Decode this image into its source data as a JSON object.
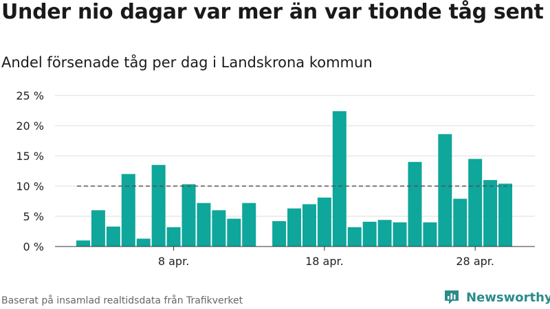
{
  "title": "Under nio dagar var mer än var tionde tåg sent",
  "subtitle": "Andel försenade tåg per dag i Landskrona kommun",
  "source": "Baserat på insamlad realtidsdata från Trafikverket",
  "brand": {
    "name": "Newsworthy",
    "icon": "bar-chart-logo-icon"
  },
  "colors": {
    "bar": "#0fa69b",
    "reference_line": "#555555",
    "grid": "#dddddd",
    "brand": "#2a8b8b"
  },
  "chart_data": {
    "type": "bar",
    "title": "Andel försenade tåg per dag i Landskrona kommun",
    "xlabel": "",
    "ylabel": "",
    "x_start": "2 apr.",
    "x_end": "30 apr.",
    "x": [
      "2 apr.",
      "3 apr.",
      "4 apr.",
      "5 apr.",
      "6 apr.",
      "7 apr.",
      "8 apr.",
      "9 apr.",
      "10 apr.",
      "11 apr.",
      "12 apr.",
      "13 apr.",
      "14 apr.",
      "15 apr.",
      "16 apr.",
      "17 apr.",
      "18 apr.",
      "19 apr.",
      "20 apr.",
      "21 apr.",
      "22 apr.",
      "23 apr.",
      "24 apr.",
      "25 apr.",
      "26 apr.",
      "27 apr.",
      "28 apr.",
      "29 apr.",
      "30 apr."
    ],
    "values": [
      1.0,
      6.0,
      3.3,
      12.0,
      1.3,
      13.5,
      3.2,
      10.3,
      7.2,
      6.0,
      4.6,
      7.2,
      null,
      4.2,
      6.3,
      7.0,
      8.1,
      22.4,
      3.2,
      4.1,
      4.4,
      4.0,
      14.0,
      4.0,
      18.6,
      7.9,
      14.5,
      11.0,
      10.4
    ],
    "reference_line": 10,
    "ylim": [
      0,
      25
    ],
    "yticks": [
      0,
      5,
      10,
      15,
      20,
      25
    ],
    "ytick_labels": [
      "0 %",
      "5 %",
      "10 %",
      "15 %",
      "20 %",
      "25 %"
    ],
    "xtick_labels": [
      "8 apr.",
      "18 apr.",
      "28 apr."
    ],
    "grid": true,
    "legend": "none"
  }
}
